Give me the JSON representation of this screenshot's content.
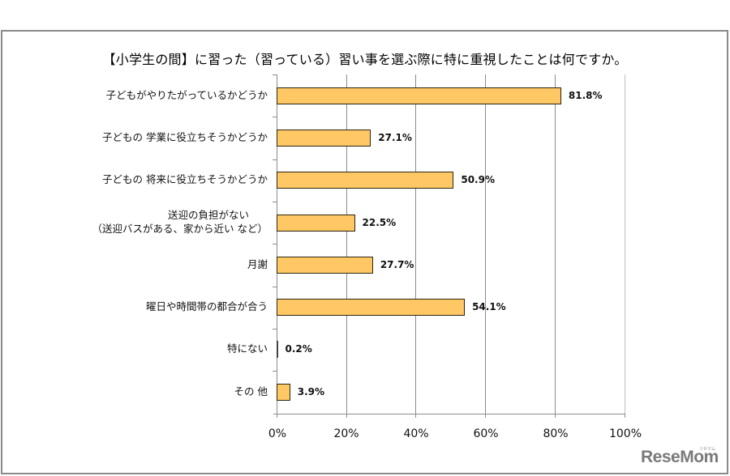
{
  "chart_data": {
    "type": "bar",
    "orientation": "horizontal",
    "title": "【小学生の間】に習った（習っている）習い事を選ぶ際に特に重視したことは何ですか。",
    "xlabel": "",
    "ylabel": "",
    "xlim": [
      0,
      100
    ],
    "grid": true,
    "legend": "none",
    "categories": [
      "子どもがやりたがっているかどうか",
      "子どもの学業に役立ちそうかどうか",
      "子どもの将来に役立ちそうかどうか",
      "送迎の負担がない（送迎バスがある、家から近い など）",
      "月謝",
      "曜日や時間帯の都合が合う",
      "特にない",
      "その他"
    ],
    "values": [
      81.8,
      27.1,
      50.9,
      22.5,
      27.7,
      54.1,
      0.2,
      3.9
    ],
    "value_labels": [
      "81.8%",
      "27.1%",
      "50.9%",
      "22.5%",
      "27.7%",
      "54.1%",
      "0.2%",
      "3.9%"
    ],
    "x_ticks": [
      "0%",
      "20%",
      "40%",
      "60%",
      "80%",
      "100%"
    ],
    "bar_color": "#FFC864",
    "bar_border_color": "#2b2410"
  },
  "chart": {
    "title": "【小学生の間】に習った（習っている）習い事を選ぶ際に特に重視したことは何ですか。",
    "bars": [
      {
        "label_line1": "子どもがやりたがっているかどうか",
        "label_line2": "",
        "value": 81.8,
        "value_label": "81.8%"
      },
      {
        "label_line1": "子どもの 学業に役立ちそうかどうか",
        "label_line2": "",
        "value": 27.1,
        "value_label": "27.1%"
      },
      {
        "label_line1": "子どもの 将来に役立ちそうかどうか",
        "label_line2": "",
        "value": 50.9,
        "value_label": "50.9%"
      },
      {
        "label_line1": "送迎の負担がない",
        "label_line2": "（送迎バスがある、家から近い など）",
        "value": 22.5,
        "value_label": "22.5%"
      },
      {
        "label_line1": "月謝",
        "label_line2": "",
        "value": 27.7,
        "value_label": "27.7%"
      },
      {
        "label_line1": "曜日や時間帯の都合が合う",
        "label_line2": "",
        "value": 54.1,
        "value_label": "54.1%"
      },
      {
        "label_line1": "特にない",
        "label_line2": "",
        "value": 0.2,
        "value_label": "0.2%"
      },
      {
        "label_line1": "その 他",
        "label_line2": "",
        "value": 3.9,
        "value_label": "3.9%"
      }
    ],
    "x_ticks": [
      "0%",
      "20%",
      "40%",
      "60%",
      "80%",
      "100%"
    ]
  },
  "branding": {
    "logo_text": "ReseMom",
    "logo_kana": "リセマム"
  }
}
